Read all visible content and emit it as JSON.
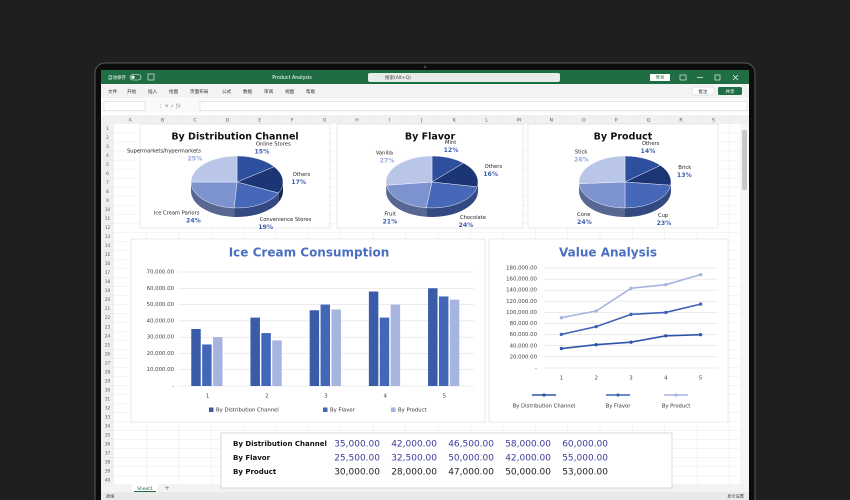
{
  "window": {
    "autosave": "自动保存",
    "file_title": "Product Analysis",
    "search": "搜索(Alt+Q)",
    "sign_in": "登录",
    "menu": [
      "文件",
      "开始",
      "插入",
      "绘图",
      "页面布局",
      "公式",
      "数据",
      "审阅",
      "视图",
      "帮助"
    ],
    "comment": "批注",
    "share": "共享",
    "columns": [
      "A",
      "B",
      "C",
      "D",
      "E",
      "F",
      "G",
      "H",
      "I",
      "J",
      "K",
      "L",
      "M",
      "N",
      "O",
      "P",
      "Q",
      "R",
      "S"
    ],
    "rows": [
      1,
      2,
      3,
      4,
      5,
      6,
      7,
      8,
      9,
      10,
      11,
      12,
      13,
      14,
      15,
      16,
      17,
      18,
      19,
      20,
      21,
      22,
      23,
      24,
      25,
      26,
      27,
      28,
      29,
      30,
      31,
      32,
      33,
      34,
      35,
      36,
      37,
      38,
      39,
      40
    ],
    "sheet": "Sheet1",
    "status": "就绪",
    "display": "显示设置"
  },
  "chart_data": [
    {
      "type": "pie",
      "title": "By Distribution Channel",
      "categories": [
        "Online Stores",
        "Others",
        "Convenience Stores",
        "Ice Cream Parlors",
        "Supermarkets/hypermarkets"
      ],
      "values": [
        15,
        17,
        19,
        24,
        25
      ],
      "value_labels": [
        "15%",
        "17%",
        "19%",
        "24%",
        "25%"
      ],
      "colors": [
        "#2e4f9e",
        "#1c3575",
        "#4768b8",
        "#7d93cf",
        "#b9c6e8"
      ]
    },
    {
      "type": "pie",
      "title": "By Flavor",
      "categories": [
        "Mint",
        "Others",
        "Chocolate",
        "Fruit",
        "Vanilla"
      ],
      "values": [
        12,
        16,
        24,
        21,
        27
      ],
      "value_labels": [
        "12%",
        "16%",
        "24%",
        "21%",
        "27%"
      ],
      "colors": [
        "#2e4f9e",
        "#1c3575",
        "#4768b8",
        "#7d93cf",
        "#b9c6e8"
      ]
    },
    {
      "type": "pie",
      "title": "By Product",
      "categories": [
        "Others",
        "Brick",
        "Cup",
        "Cone",
        "Stick"
      ],
      "values": [
        14,
        13,
        23,
        24,
        26
      ],
      "value_labels": [
        "14%",
        "13%",
        "23%",
        "24%",
        "26%"
      ],
      "colors": [
        "#2e4f9e",
        "#1c3575",
        "#4768b8",
        "#7d93cf",
        "#b9c6e8"
      ]
    },
    {
      "type": "bar",
      "title": "Ice Cream Consumption",
      "categories": [
        1,
        2,
        3,
        4,
        5
      ],
      "series": [
        {
          "name": "By Distribution Channel",
          "color": "#3a5ca8",
          "values": [
            35000,
            42000,
            46500,
            58000,
            60000
          ]
        },
        {
          "name": "By Flavor",
          "color": "#4266b8",
          "values": [
            25500,
            32500,
            50000,
            42000,
            55000
          ]
        },
        {
          "name": "By Product",
          "color": "#a7b4df",
          "values": [
            30000,
            28000,
            47000,
            50000,
            53000
          ]
        }
      ],
      "ylim": [
        0,
        70000
      ],
      "yticks": [
        {
          "value": 0,
          "label": "-"
        },
        {
          "value": 10000,
          "label": "10,000.00"
        },
        {
          "value": 20000,
          "label": "20,000.00"
        },
        {
          "value": 30000,
          "label": "30,000.00"
        },
        {
          "value": 40000,
          "label": "40,000.00"
        },
        {
          "value": 50000,
          "label": "50,000.00"
        },
        {
          "value": 60000,
          "label": "60,000.00"
        },
        {
          "value": 70000,
          "label": "70,000.00"
        }
      ],
      "grid": true,
      "legend": "bottom"
    },
    {
      "type": "line",
      "title": "Value Analysis",
      "stacked": true,
      "categories": [
        1,
        2,
        3,
        4,
        5
      ],
      "series": [
        {
          "name": "By Distribution Channel",
          "color": "#2f55a8",
          "values": [
            35000,
            42000,
            46500,
            58000,
            60000
          ]
        },
        {
          "name": "By Flavor",
          "color": "#3f64b5",
          "values": [
            25500,
            32500,
            50000,
            42000,
            55000
          ]
        },
        {
          "name": "By Product",
          "color": "#a6b4e0",
          "values": [
            30000,
            28000,
            47000,
            50000,
            53000
          ]
        }
      ],
      "ylim": [
        0,
        180000
      ],
      "yticks": [
        {
          "value": 0,
          "label": "-"
        },
        {
          "value": 20000,
          "label": "20,000.00"
        },
        {
          "value": 40000,
          "label": "40,000.00"
        },
        {
          "value": 60000,
          "label": "60,000.00"
        },
        {
          "value": 80000,
          "label": "80,000.00"
        },
        {
          "value": 100000,
          "label": "100,000.00"
        },
        {
          "value": 120000,
          "label": "120,000.00"
        },
        {
          "value": 140000,
          "label": "140,000.00"
        },
        {
          "value": 160000,
          "label": "160,000.00"
        },
        {
          "value": 180000,
          "label": "180,000.00"
        }
      ],
      "grid": true,
      "legend": "bottom"
    }
  ],
  "table": {
    "rows": [
      [
        "By Distribution Channel",
        "35,000.00",
        "42,000.00",
        "46,500.00",
        "58,000.00",
        "60,000.00"
      ],
      [
        "By Flavor",
        "25,500.00",
        "32,500.00",
        "50,000.00",
        "42,000.00",
        "55,000.00"
      ],
      [
        "By Product",
        "30,000.00",
        "28,000.00",
        "47,000.00",
        "50,000.00",
        "53,000.00"
      ]
    ]
  }
}
